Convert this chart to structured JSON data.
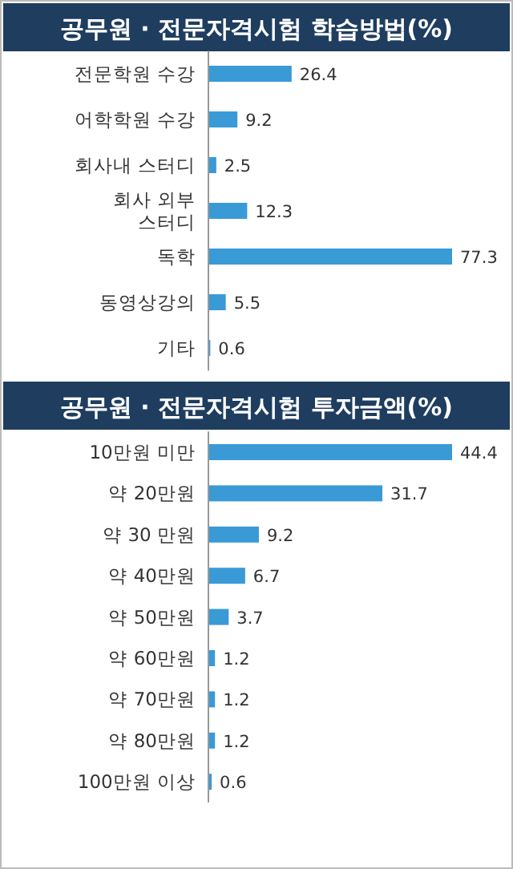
{
  "chart_data": [
    {
      "type": "bar",
      "orientation": "horizontal",
      "title": "공무원 · 전문자격시험 학습방법(%)",
      "categories": [
        "전문학원 수강",
        "어학학원 수강",
        "회사내 스터디",
        "회사 외부\n스터디",
        "독학",
        "동영상강의",
        "기타"
      ],
      "values": [
        26.4,
        9.2,
        2.5,
        12.3,
        77.3,
        5.5,
        0.6
      ],
      "color": "#3a9ad6",
      "data_labels": true
    },
    {
      "type": "bar",
      "orientation": "horizontal",
      "title": "공무원 · 전문자격시험 투자금액(%)",
      "categories": [
        "10만원 미만",
        "약 20만원",
        "약 30 만원",
        "약 40만원",
        "약 50만원",
        "약 60만원",
        "약 70만원",
        "약 80만원",
        "100만원 이상"
      ],
      "values": [
        44.4,
        31.7,
        9.2,
        6.7,
        3.7,
        1.2,
        1.2,
        1.2,
        0.6
      ],
      "color": "#3a9ad6",
      "data_labels": true
    }
  ]
}
